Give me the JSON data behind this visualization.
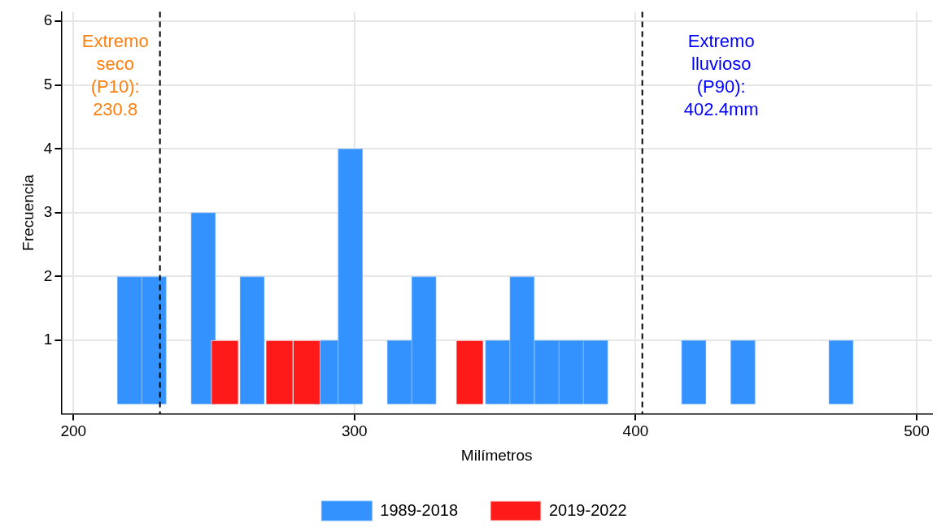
{
  "chart_data": {
    "type": "bar",
    "xlabel": "Milímetros",
    "ylabel": "Frecuencia",
    "series": [
      {
        "name": "1989-2018",
        "color": "#3492ff",
        "x": [
          220.0,
          228.7,
          237.4,
          246.2,
          254.9,
          263.6,
          272.3,
          281.1,
          289.8,
          298.5,
          307.3,
          316.0,
          324.7,
          333.4,
          342.2,
          350.9,
          359.6,
          368.4,
          377.1,
          385.8,
          394.5,
          403.3,
          412.0,
          420.7,
          429.5,
          438.2,
          446.9,
          455.7,
          464.4,
          473.1
        ],
        "values": [
          2,
          2,
          0,
          3,
          null,
          2,
          null,
          null,
          1,
          4,
          0,
          1,
          2,
          0,
          null,
          1,
          2,
          1,
          1,
          1,
          0,
          0,
          0,
          1,
          0,
          1,
          0,
          0,
          0,
          1
        ]
      },
      {
        "name": "2019-2022",
        "color": "#ff1a1a",
        "x": [
          253.9,
          263.6,
          273.3,
          283.0,
          292.6,
          302.3,
          312.0,
          321.7,
          331.4,
          341.0
        ],
        "values": [
          1,
          0,
          1,
          1,
          0,
          0,
          0,
          0,
          0,
          1
        ]
      }
    ],
    "xlim": [
      195.7,
      505.5
    ],
    "xticks": [
      200,
      300,
      400,
      500
    ],
    "ylim": [
      -0.15,
      6.15
    ],
    "yticks": [
      1,
      2,
      3,
      4,
      5,
      6
    ],
    "grid": true,
    "legend": "bottom",
    "ref_lines": [
      {
        "axis": "x",
        "value": 230.8,
        "label": "Extremo seco (P10): 230.8",
        "color": "#000000",
        "line_style": "dashed"
      },
      {
        "axis": "x",
        "value": 402.4,
        "label": "Extremo lluvioso (P90): 402.4mm",
        "color": "#000000",
        "line_style": "dashed"
      }
    ]
  }
}
